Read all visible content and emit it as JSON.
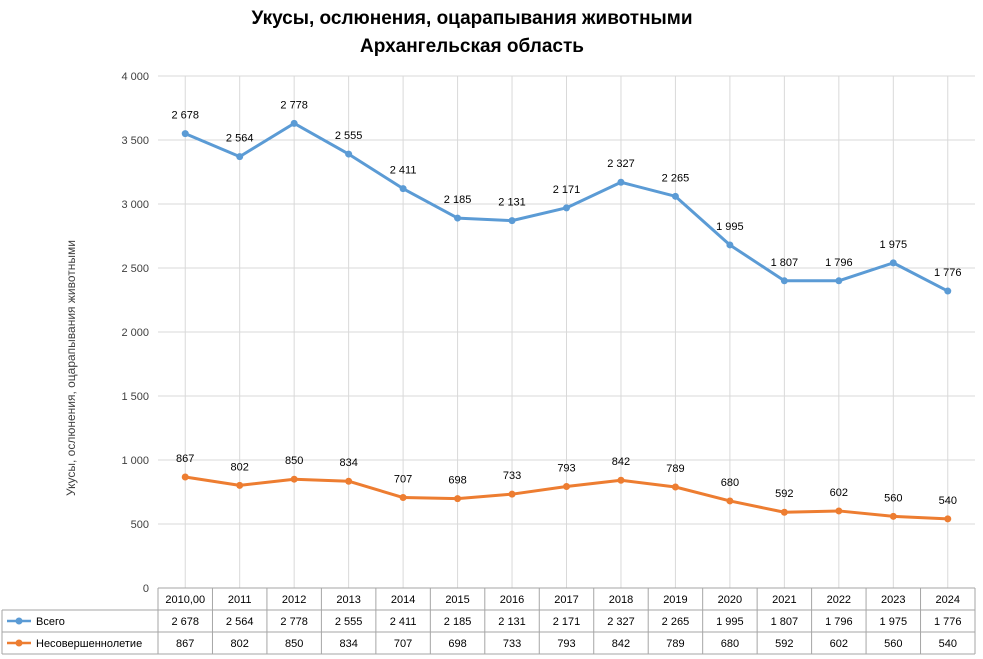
{
  "chart_data": {
    "type": "line",
    "title": "Укусы, ослюнения, оцарапывания животными",
    "subtitle": "Архангельская область",
    "xlabel": "",
    "ylabel": "Укусы, ослюнения, оцарапывания животными",
    "ylim": [
      0,
      4000
    ],
    "yticks": [
      "0",
      "500",
      "1 000",
      "1 500",
      "2 000",
      "2 500",
      "3 000",
      "3 500",
      "4 000"
    ],
    "grid": true,
    "legend": "data-table",
    "categories": [
      "2010,00",
      "2011",
      "2012",
      "2013",
      "2014",
      "2015",
      "2016",
      "2017",
      "2018",
      "2019",
      "2020",
      "2021",
      "2022",
      "2023",
      "2024"
    ],
    "series": [
      {
        "name": "Всего",
        "color": "#5b9bd5",
        "values": [
          3550,
          3370,
          3630,
          3390,
          3120,
          2890,
          2870,
          2970,
          3170,
          3060,
          2680,
          2400,
          2400,
          2540,
          2320
        ],
        "labels": [
          "2 678",
          "2 564",
          "2 778",
          "2 555",
          "2 411",
          "2 185",
          "2 131",
          "2 171",
          "2 327",
          "2 265",
          "1 995",
          "1 807",
          "1 796",
          "1 975",
          "1 776"
        ]
      },
      {
        "name": "Несовершеннолетие",
        "color": "#ed7d31",
        "values": [
          867,
          802,
          850,
          834,
          707,
          698,
          733,
          793,
          842,
          789,
          680,
          592,
          602,
          560,
          540
        ],
        "labels": [
          "867",
          "802",
          "850",
          "834",
          "707",
          "698",
          "733",
          "793",
          "842",
          "789",
          "680",
          "592",
          "602",
          "560",
          "540"
        ]
      }
    ]
  }
}
